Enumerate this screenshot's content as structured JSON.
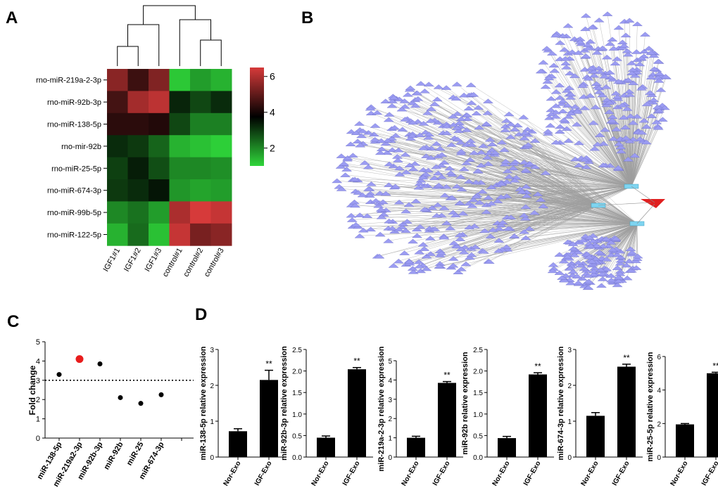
{
  "panels": {
    "a": "A",
    "b": "B",
    "c": "C",
    "d": "D"
  },
  "colors": {
    "high": "#d63a3a",
    "mid": "#000000",
    "low": "#2fd63a",
    "node": "#9b9cf2",
    "edge": "#8e8e8e",
    "hub": "#7fd4f0",
    "target": "#e02020",
    "red_dot": "#e81c1c"
  },
  "heatmap": {
    "rows": [
      "rno-miR-219a-2-3p",
      "rno-miR-92b-3p",
      "rno-miR-138-5p",
      "rno-mir-92b",
      "rno-miR-25-5p",
      "rno-miR-674-3p",
      "rno-miR-99b-5p",
      "rno-miR-122-5p"
    ],
    "cols": [
      "IGF1#1",
      "IGF1#2",
      "IGF1#3",
      "control#1",
      "control#2",
      "control#3"
    ],
    "values": [
      [
        5.6,
        4.7,
        5.5,
        1.2,
        1.8,
        1.5
      ],
      [
        4.8,
        5.9,
        6.2,
        3.5,
        3.0,
        3.4
      ],
      [
        4.5,
        4.5,
        4.4,
        3.0,
        2.2,
        2.2
      ],
      [
        3.4,
        3.2,
        2.6,
        1.5,
        1.3,
        1.1
      ],
      [
        3.1,
        3.6,
        2.9,
        2.1,
        2.1,
        2.0
      ],
      [
        3.2,
        3.4,
        3.7,
        1.9,
        1.7,
        1.8
      ],
      [
        2.1,
        2.4,
        1.8,
        6.0,
        6.6,
        6.3
      ],
      [
        1.5,
        2.5,
        1.3,
        6.3,
        5.4,
        5.6
      ]
    ],
    "colorbar_ticks": [
      "6",
      "4",
      "2"
    ]
  },
  "foldchange": {
    "ylabel": "Fold change",
    "yticks": [
      "0",
      "1",
      "2",
      "3",
      "4",
      "5"
    ],
    "ymax": 5,
    "threshold": 3,
    "categories": [
      "miR-138-5p",
      "miR-219a2-3p",
      "miR-92b-3p",
      "miR-92b",
      "miR-25",
      "miR-674-3p"
    ],
    "values": [
      3.3,
      4.1,
      3.85,
      2.1,
      1.8,
      2.25
    ],
    "highlight_index": 1
  },
  "bars": [
    {
      "ylabel": "miR-138-5p relative expression",
      "yticks": [
        "0",
        "1",
        "2",
        "3"
      ],
      "ymax": 3,
      "categories": [
        "Nor-Exo",
        "IGF-Exo"
      ],
      "values": [
        0.72,
        2.15
      ],
      "errors": [
        0.07,
        0.27
      ],
      "sig": "**"
    },
    {
      "ylabel": "miR-92b-3p relative expression",
      "yticks": [
        "0.0",
        "0.5",
        "1.0",
        "1.5",
        "2.0",
        "2.5"
      ],
      "ymax": 2.5,
      "categories": [
        "Nor-Exo",
        "IGF-Exo"
      ],
      "values": [
        0.45,
        2.04
      ],
      "errors": [
        0.04,
        0.04
      ],
      "sig": "**"
    },
    {
      "ylabel": "miR-219a-2-3p relative expression",
      "yticks": [
        "0",
        "1",
        "2",
        "3",
        "4",
        "5"
      ],
      "ymax": 5,
      "categories": [
        "Nor-Exo",
        "IGF-Exo"
      ],
      "values": [
        1.0,
        3.85
      ],
      "errors": [
        0.08,
        0.07
      ],
      "sig": "**"
    },
    {
      "ylabel": "miR-92b relative expression",
      "yticks": [
        "0.0",
        "0.5",
        "1.0",
        "1.5",
        "2.0",
        "2.5"
      ],
      "ymax": 2.5,
      "categories": [
        "Nor-Exo",
        "IGF-Exo"
      ],
      "values": [
        0.44,
        1.92
      ],
      "errors": [
        0.04,
        0.04
      ],
      "sig": "**"
    },
    {
      "ylabel": "miR-674-3p relative expression",
      "yticks": [
        "0",
        "1",
        "2",
        "3"
      ],
      "ymax": 3,
      "categories": [
        "Nor-Exo",
        "IGF-Exo"
      ],
      "values": [
        1.15,
        2.52
      ],
      "errors": [
        0.09,
        0.07
      ],
      "sig": "**"
    },
    {
      "ylabel": "miR-25-5p relative expression",
      "yticks": [
        "0",
        "2",
        "4",
        "6"
      ],
      "ymax": 6,
      "categories": [
        "Nor-Exo",
        "IGF-Exo"
      ],
      "values": [
        1.95,
        5.0
      ],
      "errors": [
        0.05,
        0.06
      ],
      "sig": "**"
    }
  ],
  "chart_data": [
    {
      "type": "heatmap",
      "title": "",
      "rows": [
        "rno-miR-219a-2-3p",
        "rno-miR-92b-3p",
        "rno-miR-138-5p",
        "rno-mir-92b",
        "rno-miR-25-5p",
        "rno-miR-674-3p",
        "rno-miR-99b-5p",
        "rno-miR-122-5p"
      ],
      "columns": [
        "IGF1#1",
        "IGF1#2",
        "IGF1#3",
        "control#1",
        "control#2",
        "control#3"
      ],
      "color_range": [
        1,
        6.5
      ]
    },
    {
      "type": "scatter",
      "ylabel": "Fold change",
      "ylim": [
        0,
        5
      ],
      "categories": [
        "miR-138-5p",
        "miR-219a2-3p",
        "miR-92b-3p",
        "miR-92b",
        "miR-25",
        "miR-674-3p"
      ],
      "values": [
        3.3,
        4.1,
        3.85,
        2.1,
        1.8,
        2.25
      ],
      "reference_line": 3
    },
    {
      "type": "bar",
      "ylabel": "miR-138-5p relative expression",
      "categories": [
        "Nor-Exo",
        "IGF-Exo"
      ],
      "values": [
        0.72,
        2.15
      ],
      "ylim": [
        0,
        3
      ]
    },
    {
      "type": "bar",
      "ylabel": "miR-92b-3p relative expression",
      "categories": [
        "Nor-Exo",
        "IGF-Exo"
      ],
      "values": [
        0.45,
        2.04
      ],
      "ylim": [
        0,
        2.5
      ]
    },
    {
      "type": "bar",
      "ylabel": "miR-219a-2-3p relative expression",
      "categories": [
        "Nor-Exo",
        "IGF-Exo"
      ],
      "values": [
        1.0,
        3.85
      ],
      "ylim": [
        0,
        5
      ]
    },
    {
      "type": "bar",
      "ylabel": "miR-92b relative expression",
      "categories": [
        "Nor-Exo",
        "IGF-Exo"
      ],
      "values": [
        0.44,
        1.92
      ],
      "ylim": [
        0,
        2.5
      ]
    },
    {
      "type": "bar",
      "ylabel": "miR-674-3p relative expression",
      "categories": [
        "Nor-Exo",
        "IGF-Exo"
      ],
      "values": [
        1.15,
        2.52
      ],
      "ylim": [
        0,
        3
      ]
    },
    {
      "type": "bar",
      "ylabel": "miR-25-5p relative expression",
      "categories": [
        "Nor-Exo",
        "IGF-Exo"
      ],
      "values": [
        1.95,
        5.0
      ],
      "ylim": [
        0,
        6
      ]
    }
  ]
}
